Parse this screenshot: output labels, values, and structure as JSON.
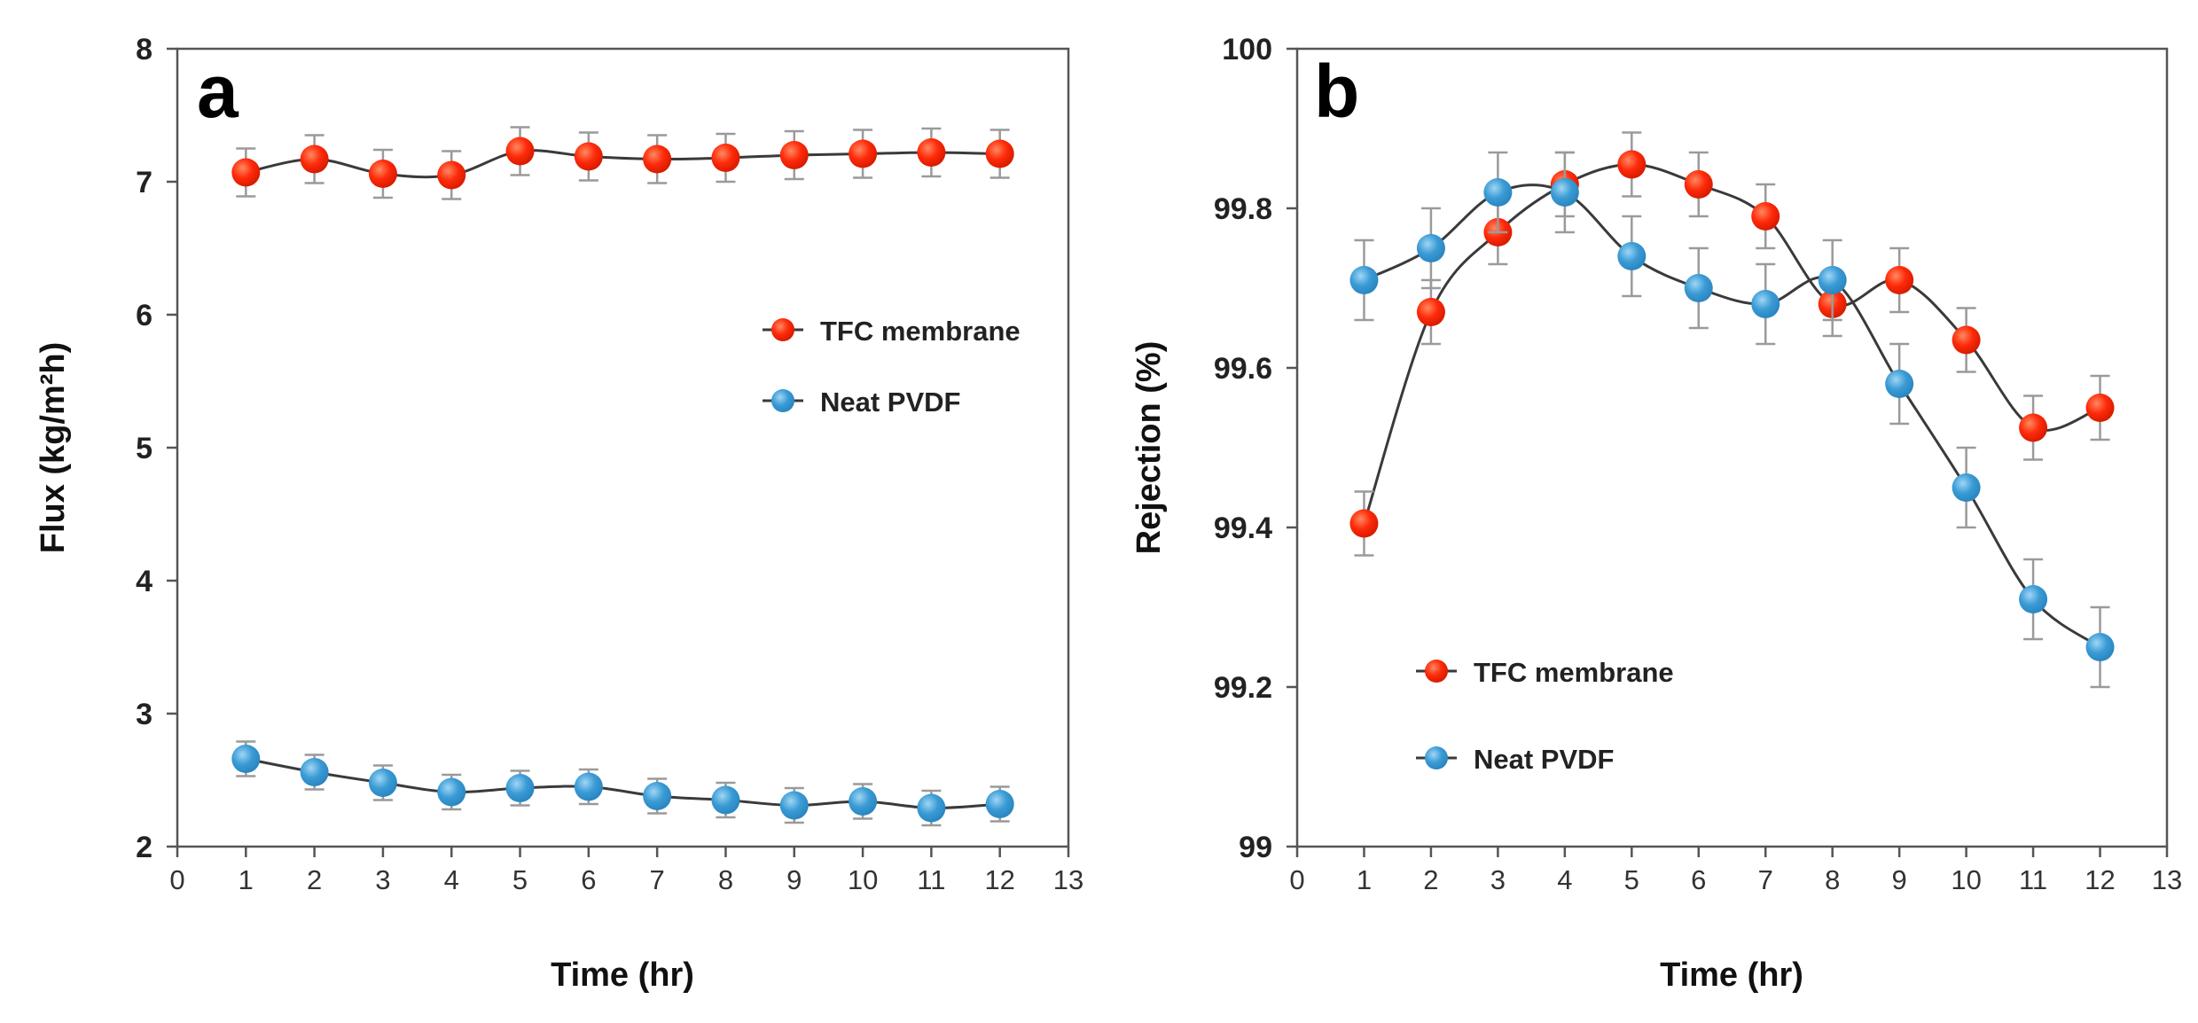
{
  "chart_data": [
    {
      "type": "line",
      "panel_label": "a",
      "title": "",
      "xlabel": "Time (hr)",
      "ylabel": "Flux (kg/m²h)",
      "xlim": [
        0,
        13
      ],
      "ylim": [
        2,
        8
      ],
      "xticks": [
        0,
        1,
        2,
        3,
        4,
        5,
        6,
        7,
        8,
        9,
        10,
        11,
        12,
        13
      ],
      "yticks": [
        2,
        3,
        4,
        5,
        6,
        7,
        8
      ],
      "x": [
        1,
        2,
        3,
        4,
        5,
        6,
        7,
        8,
        9,
        10,
        11,
        12
      ],
      "legend_position": "center-right",
      "grid": false,
      "series": [
        {
          "name": "TFC membrane",
          "color": "#ff2a0a",
          "values": [
            7.07,
            7.17,
            7.06,
            7.05,
            7.23,
            7.19,
            7.17,
            7.18,
            7.2,
            7.21,
            7.22,
            7.21
          ],
          "errors": [
            0.18,
            0.18,
            0.18,
            0.18,
            0.18,
            0.18,
            0.18,
            0.18,
            0.18,
            0.18,
            0.18,
            0.18
          ]
        },
        {
          "name": "Neat PVDF",
          "color": "#3a9bd5",
          "values": [
            2.66,
            2.56,
            2.48,
            2.41,
            2.44,
            2.45,
            2.38,
            2.35,
            2.31,
            2.34,
            2.29,
            2.32
          ],
          "errors": [
            0.13,
            0.13,
            0.13,
            0.13,
            0.13,
            0.13,
            0.13,
            0.13,
            0.13,
            0.13,
            0.13,
            0.13
          ]
        }
      ]
    },
    {
      "type": "line",
      "panel_label": "b",
      "title": "",
      "xlabel": "Time (hr)",
      "ylabel": "Rejection (%)",
      "xlim": [
        0,
        13
      ],
      "ylim": [
        99,
        100
      ],
      "xticks": [
        0,
        1,
        2,
        3,
        4,
        5,
        6,
        7,
        8,
        9,
        10,
        11,
        12,
        13
      ],
      "yticks": [
        99,
        99.2,
        99.4,
        99.6,
        99.8,
        100
      ],
      "ytick_labels": [
        "99",
        "99.2",
        "99.4",
        "99.6",
        "99.8",
        "100"
      ],
      "x": [
        1,
        2,
        3,
        4,
        5,
        6,
        7,
        8,
        9,
        10,
        11,
        12
      ],
      "legend_position": "bottom-left",
      "grid": false,
      "series": [
        {
          "name": "TFC membrane",
          "color": "#ff2a0a",
          "values": [
            99.405,
            99.67,
            99.77,
            99.83,
            99.855,
            99.83,
            99.79,
            99.68,
            99.71,
            99.635,
            99.525,
            99.55
          ],
          "errors": [
            0.04,
            0.04,
            0.04,
            0.04,
            0.04,
            0.04,
            0.04,
            0.04,
            0.04,
            0.04,
            0.04,
            0.04
          ]
        },
        {
          "name": "Neat PVDF",
          "color": "#3a9bd5",
          "values": [
            99.71,
            99.75,
            99.82,
            99.82,
            99.74,
            99.7,
            99.68,
            99.71,
            99.58,
            99.45,
            99.31,
            99.25
          ],
          "errors": [
            0.05,
            0.05,
            0.05,
            0.05,
            0.05,
            0.05,
            0.05,
            0.05,
            0.05,
            0.05,
            0.05,
            0.05
          ]
        }
      ]
    }
  ]
}
